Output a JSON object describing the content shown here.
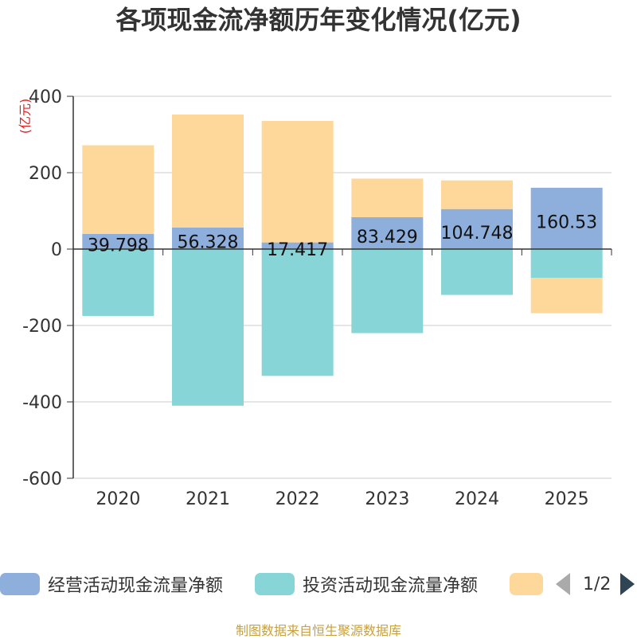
{
  "chart_data": {
    "type": "bar",
    "stacked": true,
    "title": "各项现金流净额历年变化情况(亿元)",
    "ylabel": "(亿元)",
    "categories": [
      "2020",
      "2021",
      "2022",
      "2023",
      "2024",
      "2025"
    ],
    "ylim": [
      -600,
      400
    ],
    "yticks": [
      400,
      200,
      0,
      -200,
      -400,
      -600
    ],
    "series": [
      {
        "name": "经营活动现金流量净额",
        "color": "#8eaedb",
        "values": [
          39.798,
          56.328,
          17.417,
          83.429,
          104.748,
          160.53
        ],
        "labels": [
          "39.798",
          "56.328",
          "17.417",
          "83.429",
          "104.748",
          "160.53"
        ]
      },
      {
        "name": "投资活动现金流量净额",
        "color": "#88d5d8",
        "values": [
          -175,
          -410,
          -332,
          -220,
          -120,
          -75
        ]
      },
      {
        "name": "",
        "color": "#fdd89a",
        "values": [
          232,
          296,
          318,
          101,
          75,
          -93
        ]
      }
    ]
  },
  "legend": {
    "page_text": "1/2"
  },
  "source": "制图数据来自恒生聚源数据库"
}
